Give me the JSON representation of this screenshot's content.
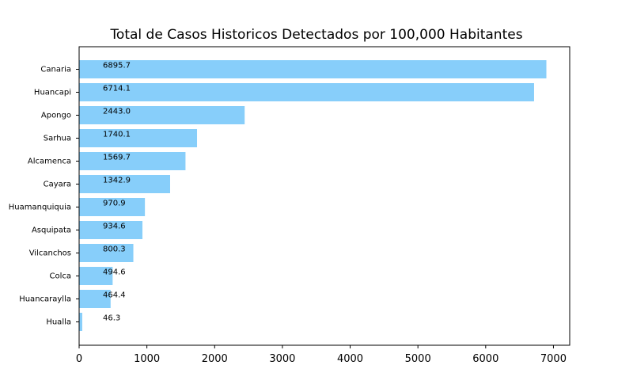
{
  "chart_data": {
    "type": "bar",
    "orientation": "horizontal",
    "title": "Total de Casos Historicos Detectados por 100,000 Habitantes",
    "xlabel": "",
    "ylabel": "",
    "categories": [
      "Canaria",
      "Huancapi",
      "Apongo",
      "Sarhua",
      "Alcamenca",
      "Cayara",
      "Huamanquiquia",
      "Asquipata",
      "Vilcanchos",
      "Colca",
      "Huancaraylla",
      "Hualla"
    ],
    "values": [
      6895.7,
      6714.1,
      2443.0,
      1740.1,
      1569.7,
      1342.9,
      970.9,
      934.6,
      800.3,
      494.6,
      464.4,
      46.3
    ],
    "value_labels": [
      "6895.7",
      "6714.1",
      "2443.0",
      "1740.1",
      "1569.7",
      "1342.9",
      "970.9",
      "934.6",
      "800.3",
      "494.6",
      "464.4",
      "46.3"
    ],
    "xlim": [
      0,
      7240
    ],
    "xticks": [
      0,
      1000,
      2000,
      3000,
      4000,
      5000,
      6000,
      7000
    ],
    "xtick_labels": [
      "0",
      "1000",
      "2000",
      "3000",
      "4000",
      "5000",
      "6000",
      "7000"
    ],
    "grid": false,
    "bar_color": "#87cefa"
  }
}
